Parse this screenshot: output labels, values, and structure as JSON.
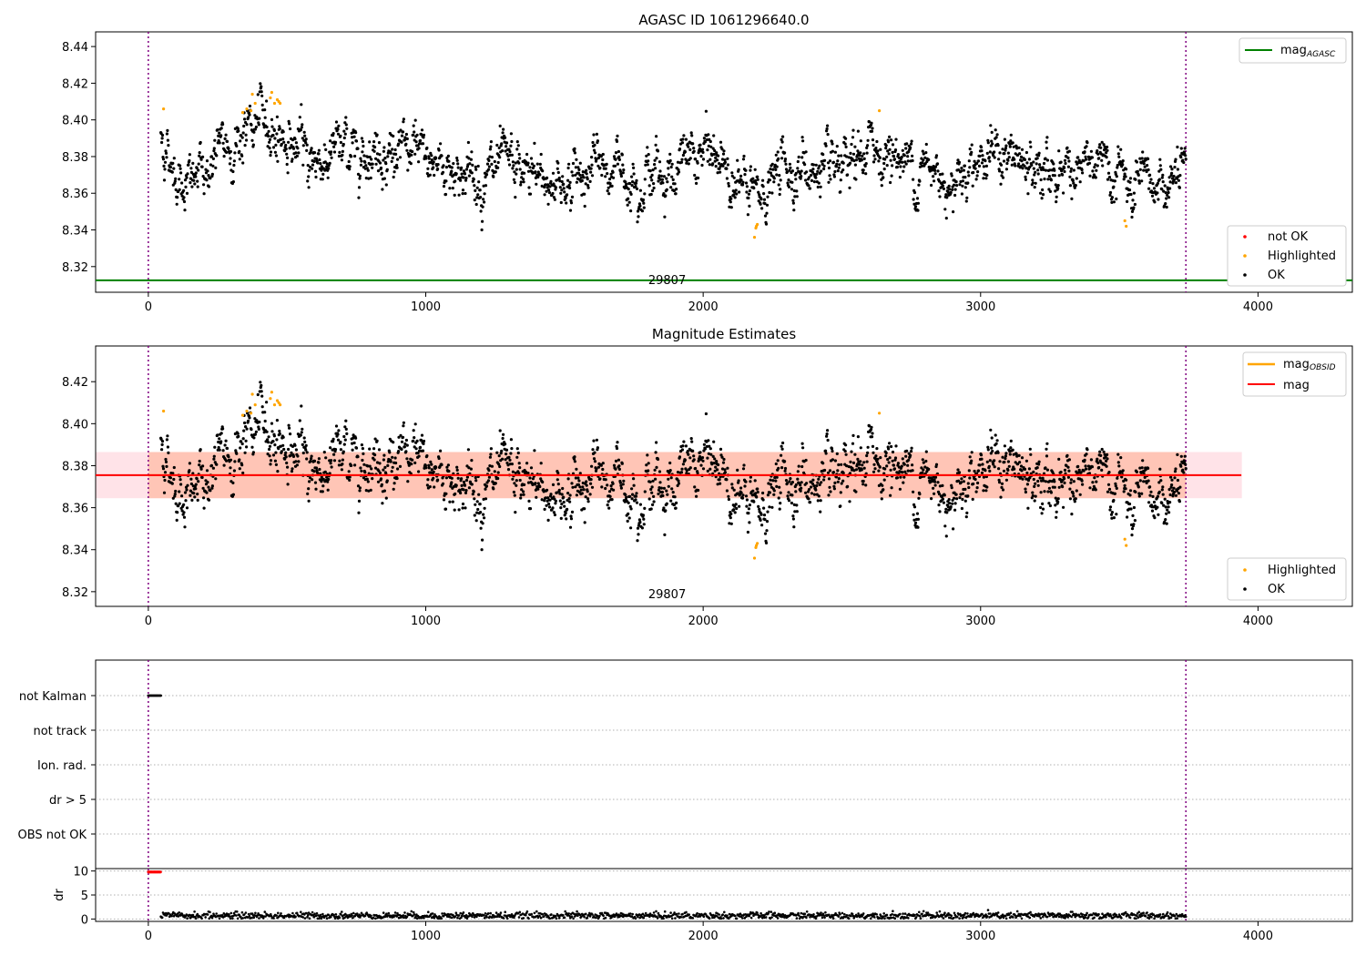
{
  "chart_data": [
    {
      "type": "scatter",
      "title": "AGASC ID 1061296640.0",
      "xlim": [
        -190,
        4340
      ],
      "ylim": [
        8.306,
        8.448
      ],
      "x_ticks": [
        0,
        1000,
        2000,
        3000,
        4000
      ],
      "y_ticks": [
        8.32,
        8.34,
        8.36,
        8.38,
        8.4,
        8.42,
        8.44
      ],
      "vlines": [
        0,
        3740
      ],
      "obsid_label": "29807",
      "obsid_label_x": 1870,
      "hline": {
        "name": "mag_AGASC",
        "y": 8.3125,
        "color": "#008000"
      },
      "legend_top": {
        "position": "top-right",
        "entries": [
          {
            "label": "mag",
            "sub": "AGASC",
            "color": "#008000"
          }
        ]
      },
      "legend_bottom": {
        "position": "bottom-right",
        "entries": [
          {
            "label": "not OK",
            "color": "#ff0000"
          },
          {
            "label": "Highlighted",
            "color": "#ffa500"
          },
          {
            "label": "OK",
            "color": "#000000"
          }
        ]
      },
      "series": [
        {
          "name": "OK",
          "color": "#000000",
          "x_range": [
            45,
            3740
          ],
          "count": 2300,
          "n_points": 2300,
          "curve": [
            [
              45,
              8.391
            ],
            [
              70,
              8.382
            ],
            [
              100,
              8.372
            ],
            [
              150,
              8.365
            ],
            [
              200,
              8.371
            ],
            [
              250,
              8.381
            ],
            [
              300,
              8.386
            ],
            [
              350,
              8.393
            ],
            [
              400,
              8.398
            ],
            [
              450,
              8.396
            ],
            [
              500,
              8.389
            ],
            [
              600,
              8.378
            ],
            [
              700,
              8.384
            ],
            [
              800,
              8.386
            ],
            [
              900,
              8.381
            ],
            [
              1000,
              8.379
            ],
            [
              1100,
              8.374
            ],
            [
              1200,
              8.368
            ],
            [
              1300,
              8.372
            ],
            [
              1400,
              8.368
            ],
            [
              1500,
              8.366
            ],
            [
              1600,
              8.374
            ],
            [
              1700,
              8.373
            ],
            [
              1800,
              8.371
            ],
            [
              1900,
              8.372
            ],
            [
              2000,
              8.382
            ],
            [
              2100,
              8.374
            ],
            [
              2150,
              8.36
            ],
            [
              2200,
              8.357
            ],
            [
              2250,
              8.367
            ],
            [
              2300,
              8.375
            ],
            [
              2400,
              8.371
            ],
            [
              2500,
              8.365
            ],
            [
              2600,
              8.385
            ],
            [
              2700,
              8.38
            ],
            [
              2800,
              8.372
            ],
            [
              2900,
              8.369
            ],
            [
              3000,
              8.382
            ],
            [
              3100,
              8.38
            ],
            [
              3200,
              8.368
            ],
            [
              3300,
              8.376
            ],
            [
              3400,
              8.372
            ],
            [
              3500,
              8.372
            ],
            [
              3550,
              8.356
            ],
            [
              3650,
              8.364
            ],
            [
              3740,
              8.368
            ]
          ]
        },
        {
          "name": "Highlighted",
          "color": "#ffa500",
          "x": [
            55,
            340,
            355,
            370,
            375,
            385,
            440,
            445,
            455,
            465,
            470,
            475,
            2185,
            2190,
            2192,
            2195,
            2635,
            3520,
            3525
          ],
          "y": [
            8.406,
            8.404,
            8.406,
            8.405,
            8.414,
            8.409,
            8.412,
            8.415,
            8.409,
            8.411,
            8.41,
            8.409,
            8.336,
            8.341,
            8.342,
            8.343,
            8.405,
            8.345,
            8.342
          ]
        }
      ]
    },
    {
      "type": "scatter",
      "title": "Magnitude Estimates",
      "xlim": [
        -190,
        4340
      ],
      "ylim": [
        8.313,
        8.437
      ],
      "x_ticks": [
        0,
        1000,
        2000,
        3000,
        4000
      ],
      "y_ticks": [
        8.32,
        8.34,
        8.36,
        8.38,
        8.4,
        8.42
      ],
      "vlines": [
        0,
        3740
      ],
      "obsid_label": "29807",
      "obsid_label_x": 1870,
      "band_outer": {
        "x": [
          -190,
          3940
        ],
        "y": [
          8.3645,
          8.3865
        ],
        "color": "#ffc0cb"
      },
      "band_inner": {
        "x": [
          0,
          3740
        ],
        "y": [
          8.3645,
          8.3865
        ],
        "color": "#ffa07a"
      },
      "mag_line": {
        "name": "mag",
        "y": 8.3755,
        "x": [
          -190,
          3940
        ],
        "color": "#ff0000"
      },
      "mag_obsid_line": {
        "name": "mag_OBSID",
        "y": 8.3755,
        "x": [
          0,
          3740
        ],
        "color": "#ffa500"
      },
      "legend_top": {
        "position": "top-right",
        "entries": [
          {
            "label": "mag",
            "sub": "OBSID",
            "color": "#ffa500"
          },
          {
            "label": "mag",
            "sub": "",
            "color": "#ff0000"
          }
        ]
      },
      "legend_bottom": {
        "position": "bottom-right",
        "entries": [
          {
            "label": "Highlighted",
            "color": "#ffa500"
          },
          {
            "label": "OK",
            "color": "#000000"
          }
        ]
      }
    },
    {
      "type": "scatter",
      "flag_panel": {
        "xlim": [
          -190,
          4340
        ],
        "categories": [
          "not Kalman",
          "not track",
          "Ion. rad.",
          "dr > 5",
          "OBS not OK"
        ],
        "flag_points": [
          {
            "category": "not Kalman",
            "x_range": [
              0,
              45
            ],
            "color": "#000000"
          }
        ],
        "vlines": [
          0,
          3740
        ]
      },
      "dr_panel": {
        "ylabel": "dr",
        "xlim": [
          -190,
          4340
        ],
        "ylim": [
          -0.5,
          10.5
        ],
        "y_ticks": [
          0,
          5,
          10
        ],
        "x_ticks": [
          0,
          1000,
          2000,
          3000,
          4000
        ],
        "series": [
          {
            "name": "dr",
            "color": "#000000",
            "x_range": [
              45,
              3740
            ],
            "base": 0.7
          },
          {
            "name": "dr clipped",
            "color": "#ff0000",
            "x_range": [
              0,
              45
            ],
            "value": 9.8
          }
        ]
      }
    }
  ]
}
